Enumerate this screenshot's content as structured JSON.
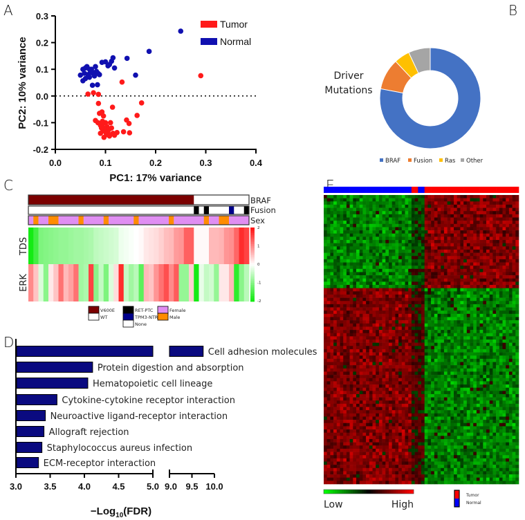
{
  "panel_labels": {
    "a": "A",
    "b": "B",
    "c": "C",
    "d": "D",
    "e": "E"
  },
  "chart_data": [
    {
      "id": "A",
      "type": "scatter",
      "xlabel": "PC1: 17% variance",
      "ylabel": "PC2: 10% variance",
      "xlim": [
        0,
        0.4
      ],
      "ylim": [
        -0.2,
        0.3
      ],
      "xticks": [
        "0.0",
        "0.1",
        "0.2",
        "0.3",
        "0.4"
      ],
      "yticks": [
        "0.3",
        "0.2",
        "0.1",
        "0.0",
        "-0.1",
        "-0.2"
      ],
      "reference_line": {
        "y": 0,
        "style": "dotted"
      },
      "legend_position": "top-right",
      "series": [
        {
          "name": "Tumor",
          "color": "#ff1a1a",
          "points": [
            [
              0.29,
              0.076
            ],
            [
              0.133,
              0.052
            ],
            [
              0.065,
              0.007
            ],
            [
              0.076,
              0.012
            ],
            [
              0.086,
              0.006
            ],
            [
              0.086,
              -0.028
            ],
            [
              0.172,
              -0.026
            ],
            [
              0.114,
              -0.042
            ],
            [
              0.163,
              -0.073
            ],
            [
              0.142,
              -0.09
            ],
            [
              0.147,
              -0.103
            ],
            [
              0.148,
              -0.138
            ],
            [
              0.136,
              -0.134
            ],
            [
              0.088,
              -0.065
            ],
            [
              0.093,
              -0.06
            ],
            [
              0.096,
              -0.075
            ],
            [
              0.08,
              -0.092
            ],
            [
              0.085,
              -0.1
            ],
            [
              0.09,
              -0.11
            ],
            [
              0.094,
              -0.095
            ],
            [
              0.1,
              -0.1
            ],
            [
              0.103,
              -0.115
            ],
            [
              0.11,
              -0.1
            ],
            [
              0.107,
              -0.125
            ],
            [
              0.112,
              -0.12
            ],
            [
              0.095,
              -0.13
            ],
            [
              0.09,
              -0.14
            ],
            [
              0.097,
              -0.155
            ],
            [
              0.102,
              -0.145
            ],
            [
              0.108,
              -0.15
            ],
            [
              0.115,
              -0.14
            ],
            [
              0.123,
              -0.137
            ],
            [
              0.118,
              -0.147
            ],
            [
              0.098,
              -0.12
            ],
            [
              0.092,
              -0.12
            ],
            [
              0.105,
              -0.138
            ],
            [
              0.1,
              -0.135
            ],
            [
              0.093,
              -0.108
            ]
          ]
        },
        {
          "name": "Normal",
          "color": "#1010b0",
          "points": [
            [
              0.25,
              0.243
            ],
            [
              0.187,
              0.167
            ],
            [
              0.143,
              0.141
            ],
            [
              0.16,
              0.078
            ],
            [
              0.115,
              0.143
            ],
            [
              0.112,
              0.13
            ],
            [
              0.108,
              0.118
            ],
            [
              0.118,
              0.105
            ],
            [
              0.1,
              0.128
            ],
            [
              0.093,
              0.126
            ],
            [
              0.105,
              0.113
            ],
            [
              0.05,
              0.078
            ],
            [
              0.055,
              0.1
            ],
            [
              0.06,
              0.105
            ],
            [
              0.063,
              0.11
            ],
            [
              0.068,
              0.1
            ],
            [
              0.072,
              0.095
            ],
            [
              0.058,
              0.085
            ],
            [
              0.065,
              0.08
            ],
            [
              0.07,
              0.088
            ],
            [
              0.075,
              0.085
            ],
            [
              0.08,
              0.11
            ],
            [
              0.082,
              0.092
            ],
            [
              0.085,
              0.085
            ],
            [
              0.078,
              0.075
            ],
            [
              0.055,
              0.057
            ],
            [
              0.06,
              0.065
            ],
            [
              0.068,
              0.07
            ],
            [
              0.074,
              0.04
            ],
            [
              0.084,
              0.042
            ],
            [
              0.088,
              0.08
            ],
            [
              0.072,
              0.1
            ]
          ]
        }
      ]
    },
    {
      "id": "B",
      "type": "pie",
      "donut": true,
      "title": "Driver Mutations",
      "categories": [
        "BRAF",
        "Fusion",
        "Ras",
        "Other"
      ],
      "values": [
        78,
        10,
        5,
        7
      ],
      "colors": [
        "#4472c4",
        "#ed7d31",
        "#ffc000",
        "#a5a5a5"
      ],
      "legend_position": "bottom"
    },
    {
      "id": "C",
      "type": "heatmap",
      "annotation_rows": {
        "BRAF": [
          "V600E",
          "V600E",
          "V600E",
          "V600E",
          "V600E",
          "V600E",
          "V600E",
          "V600E",
          "V600E",
          "V600E",
          "V600E",
          "V600E",
          "V600E",
          "V600E",
          "V600E",
          "V600E",
          "V600E",
          "V600E",
          "V600E",
          "V600E",
          "V600E",
          "V600E",
          "V600E",
          "V600E",
          "V600E",
          "V600E",
          "V600E",
          "V600E",
          "V600E",
          "V600E",
          "V600E",
          "V600E",
          "V600E",
          "WT",
          "WT",
          "WT",
          "WT",
          "WT",
          "WT",
          "WT",
          "WT",
          "WT",
          "WT",
          "WT"
        ],
        "Fusion": [
          "None",
          "None",
          "None",
          "None",
          "None",
          "None",
          "None",
          "None",
          "None",
          "None",
          "None",
          "None",
          "None",
          "None",
          "None",
          "None",
          "None",
          "None",
          "None",
          "None",
          "None",
          "None",
          "None",
          "None",
          "None",
          "None",
          "None",
          "None",
          "None",
          "None",
          "None",
          "None",
          "None",
          "RET-PTC",
          "None",
          "RET-PTC",
          "None",
          "None",
          "None",
          "None",
          "TPM3-NTRK1",
          "None",
          "None",
          "RET-PTC"
        ],
        "Sex": [
          "Female",
          "Male",
          "Female",
          "Female",
          "Male",
          "Male",
          "Female",
          "Female",
          "Female",
          "Female",
          "Male",
          "Female",
          "Female",
          "Female",
          "Female",
          "Male",
          "Female",
          "Female",
          "Female",
          "Female",
          "Female",
          "Male",
          "Female",
          "Female",
          "Female",
          "Female",
          "Female",
          "Female",
          "Male",
          "Female",
          "Female",
          "Female",
          "Female",
          "Female",
          "Female",
          "Male",
          "Female",
          "Female",
          "Male",
          "Male",
          "Female",
          "Female",
          "Female",
          "Female"
        ]
      },
      "row_labels": [
        "BRAF",
        "Fusion",
        "Sex"
      ],
      "rows": [
        {
          "name": "TDS",
          "values": [
            -2,
            -1.6,
            -1.1,
            -1.05,
            -1,
            -0.95,
            -0.9,
            -0.9,
            -0.85,
            -0.8,
            -0.8,
            -0.75,
            -0.7,
            -0.55,
            -0.5,
            -0.45,
            -0.4,
            -0.35,
            -0.15,
            -0.1,
            -0.05,
            0,
            0.05,
            0.2,
            0.25,
            0.3,
            0.4,
            0.55,
            0.6,
            0.85,
            0.9,
            1.35,
            1.35,
            0.05,
            0.05,
            0.05,
            0.6,
            0.6,
            0.65,
            0.9,
            0.95,
            1.3,
            1.8,
            1.6
          ]
        },
        {
          "name": "ERK",
          "values": [
            1.0,
            0.5,
            -0.3,
            -1.0,
            0.2,
            0.5,
            1.2,
            0.6,
            0.8,
            1.2,
            -0.8,
            -0.7,
            1.6,
            -1.0,
            -0.5,
            -1.1,
            -0.3,
            0.3,
            1.8,
            -0.5,
            -0.8,
            -0.6,
            -1.4,
            0.6,
            0.5,
            0.9,
            1.2,
            1.5,
            1.0,
            1.4,
            -0.9,
            -0.9,
            0.4,
            -2,
            -0.2,
            -0.5,
            -0.4,
            -0.9,
            0.2,
            0.2,
            0.6,
            -1.8,
            -1.0,
            -0.6
          ]
        }
      ],
      "color_range": [
        -2,
        2
      ],
      "colorbar_ticks": [
        "2",
        "1",
        "0",
        "-1",
        "-2"
      ],
      "colors": {
        "low": "#00ee00",
        "mid": "#ffffff",
        "high": "#ff0000",
        "V600E": "#7b0000",
        "WT": "#ffffff",
        "RET-PTC": "#000000",
        "TPM3-NTRK1": "#00008b",
        "None": "#ffffff",
        "Female": "#e08ef2",
        "Male": "#ff8c00"
      },
      "legend": [
        [
          "V600E",
          "WT"
        ],
        [
          "RET-PTC",
          "TPM3-NTRK1",
          "None"
        ],
        [
          "Female",
          "Male"
        ]
      ]
    },
    {
      "id": "D",
      "type": "bar",
      "orientation": "horizontal",
      "xlabel_main": "−Log",
      "xlabel_sub": "10",
      "xlabel_tail": "(FDR)",
      "axis_break": [
        5.0,
        9.0
      ],
      "xticks_left": [
        "3.0",
        "3.5",
        "4.0",
        "4.5",
        "5.0"
      ],
      "xticks_right": [
        "9.0",
        "9.5",
        "10.0"
      ],
      "xlim": [
        3.0,
        10.0
      ],
      "color": "#0a0a80",
      "categories": [
        "Cell adhesion molecules",
        "Protein digestion and absorption",
        "Hematopoietic cell lineage",
        "Cytokine-cytokine receptor interaction",
        "Neuroactive ligand-receptor interaction",
        "Allograft rejection",
        "Staphylococcus aureus infection",
        "ECM-receptor interaction"
      ],
      "values": [
        9.75,
        4.12,
        4.05,
        3.6,
        3.43,
        3.41,
        3.38,
        3.33
      ]
    },
    {
      "id": "E",
      "type": "heatmap",
      "description_free": true,
      "n_cols": 60,
      "n_rows": 90,
      "sample_groups": [
        "Normal",
        "Normal",
        "Tumor",
        "Normal",
        "Tumor"
      ],
      "group_sizes": [
        27,
        0,
        2,
        2,
        29
      ],
      "gene_clusters": [
        {
          "rows": 29,
          "normal": "low",
          "tumor": "high"
        },
        {
          "rows": 61,
          "normal": "high",
          "tumor": "low"
        }
      ],
      "colorbar_labels": {
        "low": "Low",
        "high": "High"
      },
      "legend": [
        "Tumor",
        "Normal"
      ],
      "colors": {
        "Tumor": "#ff0000",
        "Normal": "#0000ff",
        "low": "#00ff00",
        "mid": "#000000",
        "high": "#ff0000"
      }
    }
  ]
}
